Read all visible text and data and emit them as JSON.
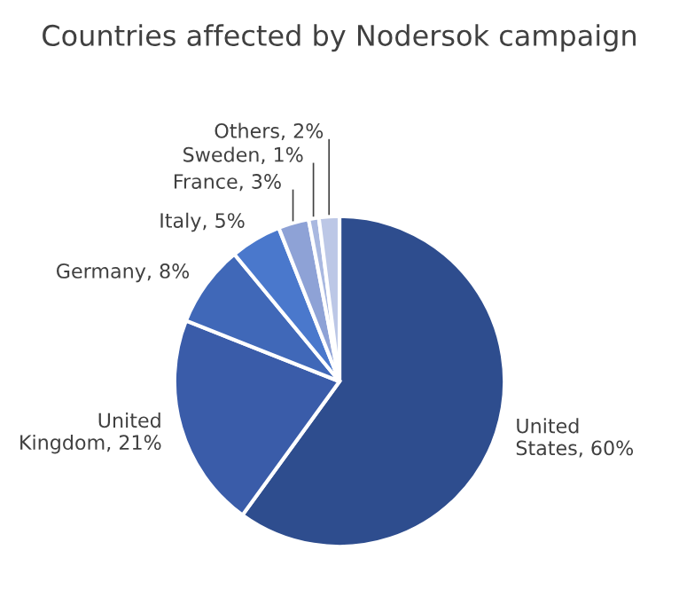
{
  "chart_data": {
    "type": "pie",
    "title": "Countries affected by Nodersok campaign",
    "categories": [
      "United States",
      "United Kingdom",
      "Germany",
      "Italy",
      "France",
      "Sweden",
      "Others"
    ],
    "values": [
      60,
      21,
      8,
      5,
      3,
      1,
      2
    ],
    "value_labels": [
      "60%",
      "21%",
      "8%",
      "5%",
      "3%",
      "1%",
      "2%"
    ],
    "colors": [
      "#2e4d8e",
      "#3a5ca9",
      "#4068b8",
      "#4a78cc",
      "#8ea2d6",
      "#a9b8e0",
      "#bcc7e6"
    ],
    "legend": false
  }
}
